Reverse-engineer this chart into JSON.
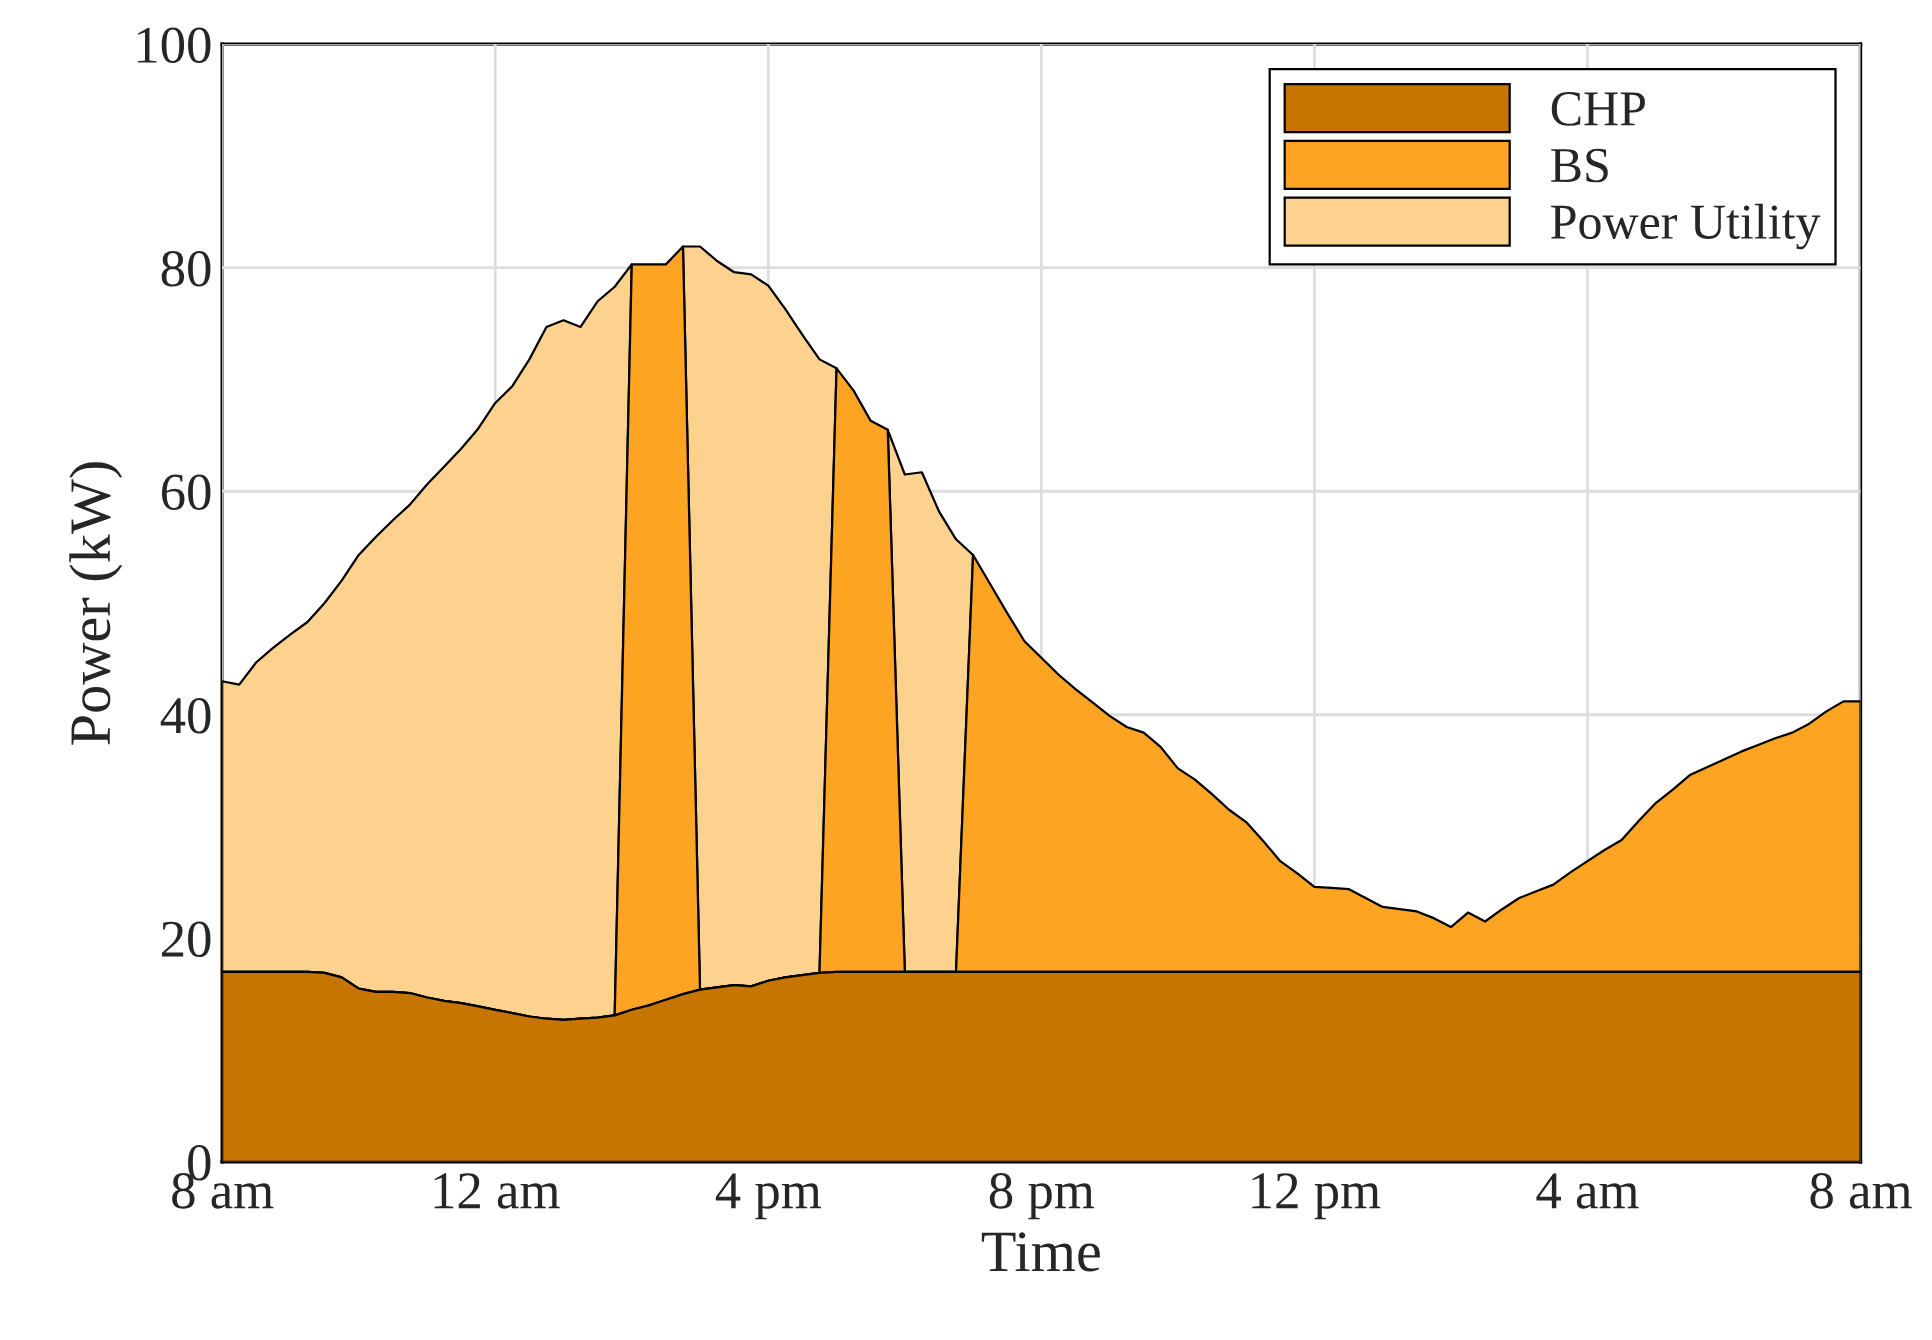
{
  "chart_data": {
    "type": "area",
    "stacked": true,
    "xlabel": "Time",
    "ylabel": "Power (kW)",
    "categories": [
      "8 am",
      null,
      null,
      null,
      null,
      null,
      null,
      null,
      null,
      null,
      null,
      null,
      null,
      null,
      null,
      null,
      "12 am",
      null,
      null,
      null,
      null,
      null,
      null,
      null,
      null,
      null,
      null,
      null,
      null,
      null,
      null,
      null,
      "4 pm",
      null,
      null,
      null,
      null,
      null,
      null,
      null,
      null,
      null,
      null,
      null,
      null,
      null,
      null,
      null,
      "8 pm",
      null,
      null,
      null,
      null,
      null,
      null,
      null,
      null,
      null,
      null,
      null,
      null,
      null,
      null,
      null,
      "12 pm",
      null,
      null,
      null,
      null,
      null,
      null,
      null,
      null,
      null,
      null,
      null,
      null,
      null,
      null,
      null,
      "4 am",
      null,
      null,
      null,
      null,
      null,
      null,
      null,
      null,
      null,
      null,
      null,
      null,
      null,
      null,
      null,
      "8 am"
    ],
    "series": [
      {
        "name": "CHP",
        "color": "#c67600",
        "values": [
          17,
          17,
          17,
          17,
          17,
          17,
          16.9,
          16.5,
          15.5,
          15.2,
          15.2,
          15.1,
          14.7,
          14.4,
          14.2,
          13.9,
          13.6,
          13.3,
          13.0,
          12.8,
          12.7,
          12.8,
          12.9,
          13.1,
          13.6,
          14.0,
          14.5,
          15.0,
          15.4,
          15.6,
          15.8,
          15.7,
          16.2,
          16.5,
          16.7,
          16.9,
          17,
          17,
          17,
          17,
          17,
          17,
          17,
          17,
          17,
          17,
          17,
          17,
          17,
          17,
          17,
          17,
          17,
          17,
          17,
          17,
          17,
          17,
          17,
          17,
          17,
          17,
          17,
          17,
          17,
          17,
          17,
          17,
          17,
          17,
          17,
          17,
          17,
          17,
          17,
          17,
          17,
          17,
          17,
          17,
          17,
          17,
          17,
          17,
          17,
          17,
          17,
          17,
          17,
          17,
          17,
          17,
          17,
          17,
          17,
          17,
          17
        ]
      },
      {
        "name": "BS",
        "color": "#fea423",
        "values": [
          0,
          0,
          0,
          0,
          0,
          0,
          0,
          0,
          0,
          0,
          0,
          0,
          0,
          0,
          0,
          0,
          0,
          0,
          0,
          0,
          0,
          0,
          0,
          0,
          66.7,
          66.3,
          65.8,
          66.9,
          0,
          0,
          0,
          0,
          0,
          0,
          0,
          0,
          54.0,
          52.0,
          49.3,
          48.5,
          0,
          0,
          0,
          0,
          37.3,
          34.7,
          32.1,
          29.6,
          28.1,
          26.6,
          25.3,
          24.1,
          22.9,
          21.9,
          21.4,
          20.1,
          18.2,
          17.2,
          15.9,
          14.5,
          13.4,
          11.7,
          9.9,
          8.8,
          7.6,
          7.5,
          7.4,
          6.6,
          5.8,
          5.6,
          5.4,
          4.8,
          4.0,
          5.3,
          4.5,
          5.6,
          6.6,
          7.2,
          7.8,
          8.9,
          9.9,
          10.9,
          11.8,
          13.5,
          15.1,
          16.3,
          17.6,
          18.3,
          19.0,
          19.7,
          20.3,
          20.9,
          21.4,
          22.2,
          23.3,
          24.2,
          24.2
        ]
      },
      {
        "name": "Power Utility",
        "color": "#fdd18e",
        "values": [
          26.0,
          25.7,
          27.7,
          29.0,
          30.2,
          31.3,
          33.1,
          35.5,
          38.8,
          40.7,
          42.2,
          43.7,
          45.9,
          47.8,
          49.6,
          51.7,
          54.3,
          56.1,
          58.8,
          61.9,
          62.6,
          61.9,
          64.1,
          65.2,
          0,
          null,
          null,
          0,
          66.5,
          65.0,
          63.8,
          63.7,
          62.2,
          59.8,
          57.3,
          54.9,
          0,
          null,
          null,
          0,
          44.5,
          44.7,
          41.2,
          38.7,
          0,
          null,
          null,
          null,
          null,
          null,
          null,
          null,
          null,
          null,
          null,
          null,
          null,
          null,
          null,
          null,
          null,
          null,
          null,
          null,
          null,
          null,
          null,
          null,
          null,
          null,
          null,
          null,
          null,
          null,
          null,
          null,
          null,
          null,
          null,
          null,
          null,
          null,
          null,
          null,
          null,
          null,
          null,
          null,
          null,
          null,
          null,
          null,
          null,
          null,
          null,
          null,
          null
        ]
      }
    ],
    "ylim": [
      0,
      100
    ],
    "yticks": [
      0,
      20,
      40,
      60,
      80,
      100
    ],
    "grid": true,
    "legend": "top right"
  }
}
